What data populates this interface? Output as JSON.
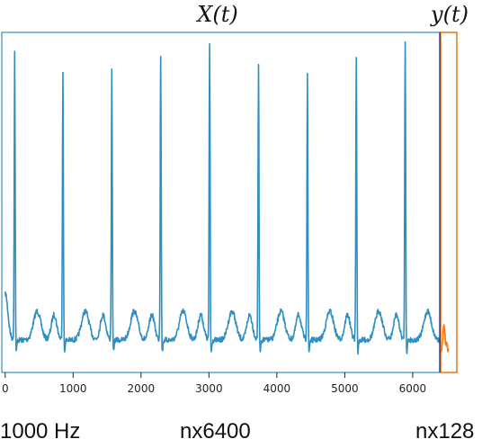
{
  "chart_data": {
    "type": "line",
    "annotations": {
      "input_label": "X(t)",
      "target_label": "y(t)"
    },
    "xlim": [
      -50,
      6650
    ],
    "ylim": [
      0,
      1
    ],
    "xticks": [
      0,
      1000,
      2000,
      3000,
      4000,
      5000,
      6000
    ],
    "grid": false,
    "y_ticks_visible": false,
    "split_x": 6400,
    "target_end_x": 6528,
    "r_peaks": [
      140,
      850,
      1570,
      2290,
      3010,
      3730,
      4450,
      5170,
      5890
    ],
    "peak_heights": [
      0.97,
      0.9,
      0.9,
      0.95,
      0.98,
      0.91,
      0.89,
      0.95,
      0.99
    ],
    "series": [
      {
        "color": "#2f8fc2"
      },
      {
        "color": "#f07f20"
      }
    ],
    "split_line_color": "#3b3b7a",
    "box_color": "#2f8fc2",
    "target_box_color": "#f07f20"
  },
  "footer": {
    "sample_rate": "1000 Hz",
    "input_size": "nx6400",
    "target_size": "nx128"
  }
}
